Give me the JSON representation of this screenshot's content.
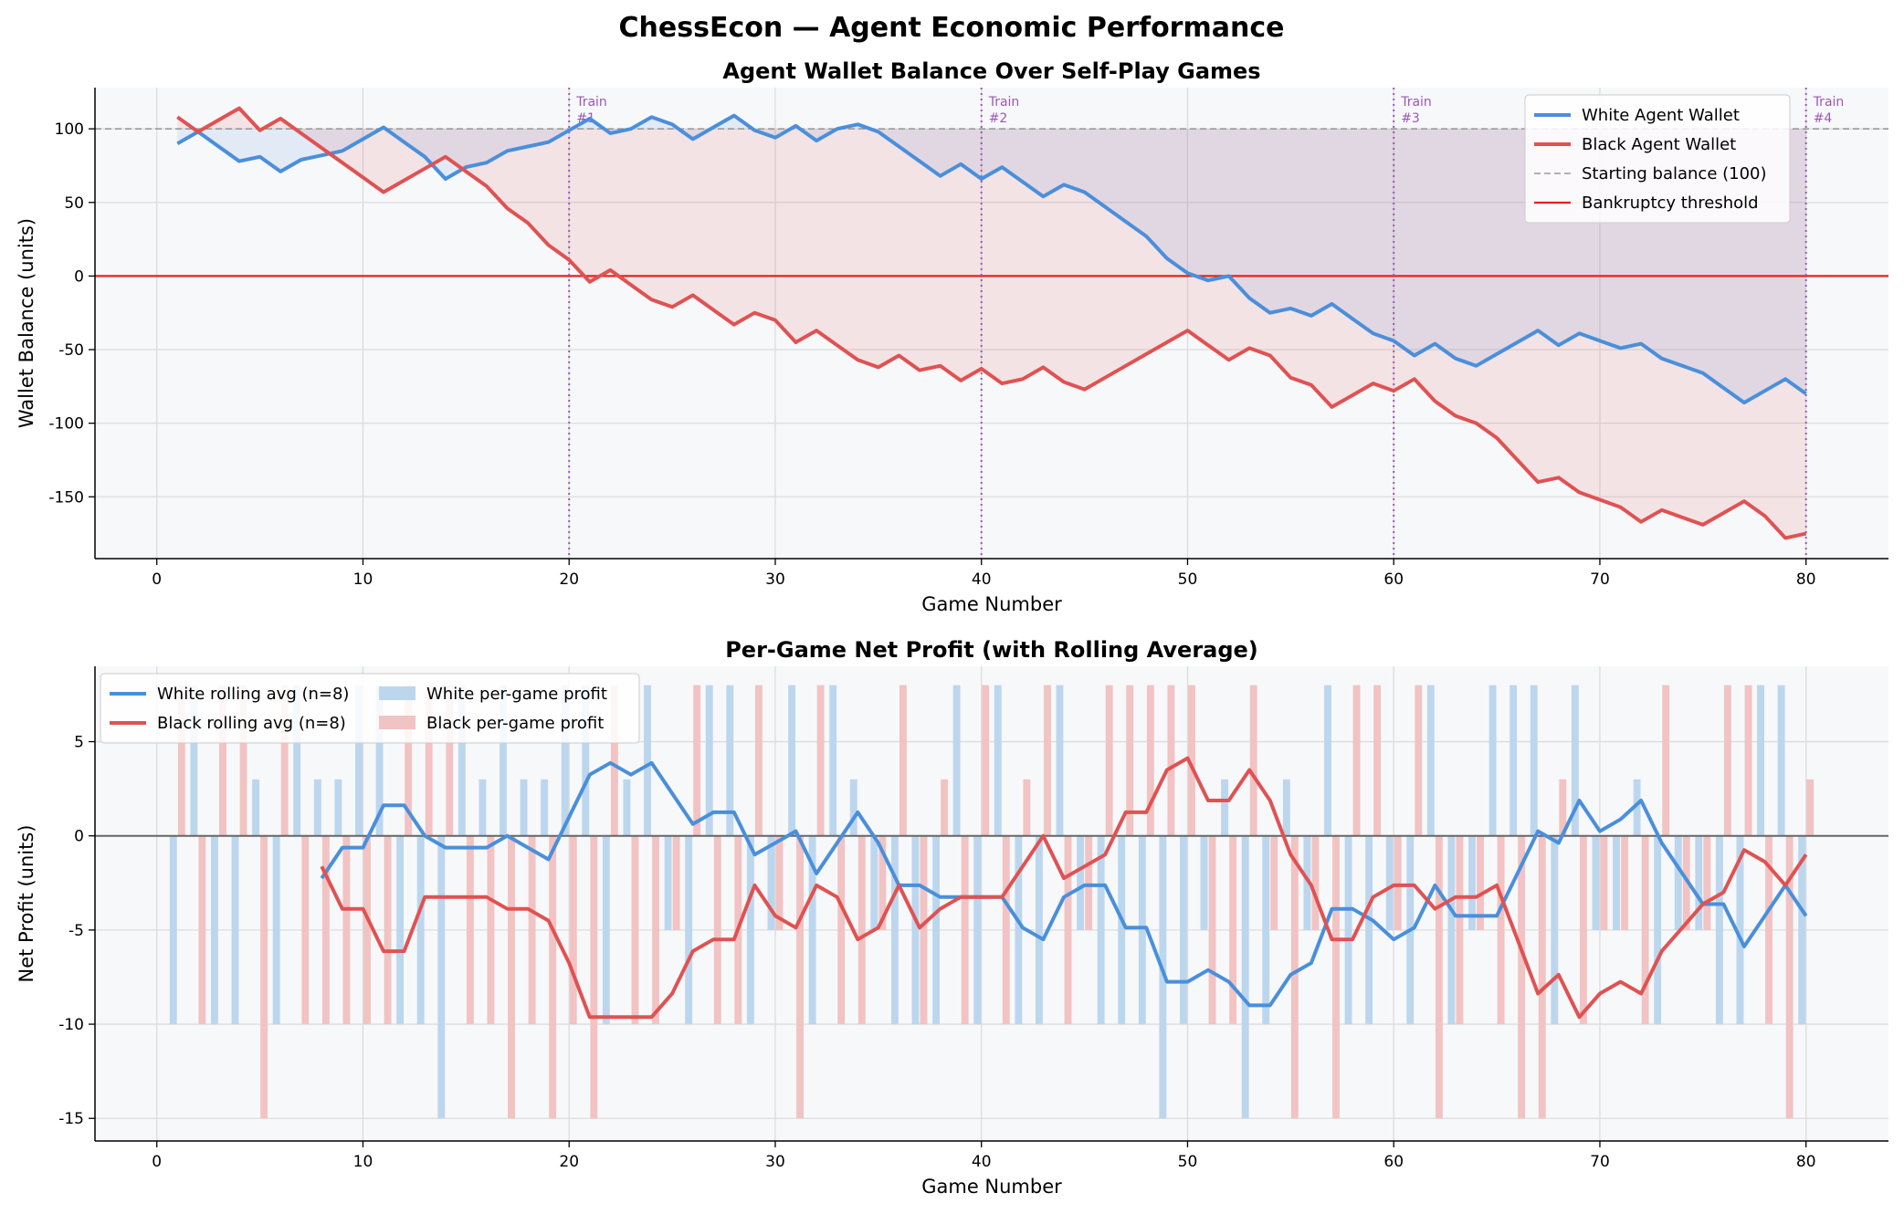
{
  "suptitle": "ChessEcon — Agent Economic Performance",
  "colors": {
    "white": "#4a8fdb",
    "black": "#e05252",
    "white_bar": "#bcd6ee",
    "black_bar": "#f1c3c3",
    "threshold": "#e82020",
    "train": "#9b59b6",
    "start": "#999999",
    "axes_bg": "#f7f8fa"
  },
  "chart_data": [
    {
      "type": "line",
      "title": "Agent Wallet Balance Over Self-Play Games",
      "xlabel": "Game Number",
      "ylabel": "Wallet Balance (units)",
      "xlim": [
        -3,
        84
      ],
      "ylim": [
        -192,
        128
      ],
      "xticks": [
        0,
        10,
        20,
        30,
        40,
        50,
        60,
        70,
        80
      ],
      "yticks": [
        -150,
        -100,
        -50,
        0,
        50,
        100
      ],
      "grid": true,
      "legend_position": "top-right",
      "x": [
        1,
        2,
        3,
        4,
        5,
        6,
        7,
        8,
        9,
        10,
        11,
        12,
        13,
        14,
        15,
        16,
        17,
        18,
        19,
        20,
        21,
        22,
        23,
        24,
        25,
        26,
        27,
        28,
        29,
        30,
        31,
        32,
        33,
        34,
        35,
        36,
        37,
        38,
        39,
        40,
        41,
        42,
        43,
        44,
        45,
        46,
        47,
        48,
        49,
        50,
        51,
        52,
        53,
        54,
        55,
        56,
        57,
        58,
        59,
        60,
        61,
        62,
        63,
        64,
        65,
        66,
        67,
        68,
        69,
        70,
        71,
        72,
        73,
        74,
        75,
        76,
        77,
        78,
        79,
        80
      ],
      "series": [
        {
          "name": "White Agent Wallet",
          "values": [
            90,
            98,
            88,
            78,
            81,
            71,
            79,
            82,
            85,
            93,
            101,
            91,
            81,
            66,
            74,
            77,
            85,
            88,
            91,
            99,
            107,
            97,
            100,
            108,
            103,
            93,
            101,
            109,
            99,
            94,
            102,
            92,
            100,
            103,
            98,
            88,
            78,
            68,
            76,
            66,
            74,
            64,
            54,
            62,
            57,
            47,
            37,
            27,
            12,
            2,
            -3,
            0,
            -15,
            -25,
            -22,
            -27,
            -19,
            -29,
            -39,
            -44,
            -54,
            -46,
            -56,
            -61,
            -53,
            -45,
            -37,
            -47,
            -39,
            -44,
            -49,
            -46,
            -56,
            -61,
            -66,
            -76,
            -86,
            -78,
            -70,
            -80
          ]
        },
        {
          "name": "Black Agent Wallet",
          "values": [
            108,
            98,
            106,
            114,
            99,
            107,
            97,
            87,
            77,
            67,
            57,
            65,
            73,
            81,
            71,
            61,
            46,
            36,
            21,
            11,
            -4,
            4,
            -6,
            -16,
            -21,
            -13,
            -23,
            -33,
            -25,
            -30,
            -45,
            -37,
            -47,
            -57,
            -62,
            -54,
            -64,
            -61,
            -71,
            -63,
            -73,
            -70,
            -62,
            -72,
            -77,
            -69,
            -61,
            -53,
            -45,
            -37,
            -47,
            -57,
            -49,
            -54,
            -69,
            -74,
            -89,
            -81,
            -73,
            -78,
            -70,
            -85,
            -95,
            -100,
            -110,
            -125,
            -140,
            -137,
            -147,
            -152,
            -157,
            -167,
            -159,
            -164,
            -169,
            -161,
            -153,
            -163,
            -178,
            -175
          ]
        }
      ],
      "reference_lines": [
        {
          "name": "Starting balance (100)",
          "value": 100
        },
        {
          "name": "Bankruptcy threshold",
          "value": 0
        }
      ],
      "annotations": [
        {
          "x": 20,
          "text_line1": "Train",
          "text_line2": "#1"
        },
        {
          "x": 40,
          "text_line1": "Train",
          "text_line2": "#2"
        },
        {
          "x": 60,
          "text_line1": "Train",
          "text_line2": "#3"
        },
        {
          "x": 80,
          "text_line1": "Train",
          "text_line2": "#4"
        }
      ]
    },
    {
      "type": "bar",
      "title": "Per-Game Net Profit (with Rolling Average)",
      "xlabel": "Game Number",
      "ylabel": "Net Profit (units)",
      "xlim": [
        -3,
        84
      ],
      "ylim": [
        -16.2,
        9
      ],
      "xticks": [
        0,
        10,
        20,
        30,
        40,
        50,
        60,
        70,
        80
      ],
      "yticks": [
        -15,
        -10,
        -5,
        0,
        5
      ],
      "grid": true,
      "legend_position": "top-left",
      "rolling_window": 8,
      "series": [
        {
          "name": "White per-game profit",
          "values": [
            -10,
            8,
            -10,
            -10,
            3,
            -10,
            8,
            3,
            3,
            8,
            8,
            -10,
            -10,
            -15,
            8,
            3,
            8,
            3,
            3,
            8,
            8,
            -10,
            3,
            8,
            -5,
            -10,
            8,
            8,
            -10,
            -5,
            8,
            -10,
            8,
            3,
            -5,
            -10,
            -10,
            -10,
            8,
            -10,
            8,
            -10,
            -10,
            8,
            -5,
            -10,
            -10,
            -10,
            -15,
            -10,
            -5,
            3,
            -15,
            -10,
            3,
            -5,
            8,
            -10,
            -10,
            -5,
            -10,
            8,
            -10,
            -5,
            8,
            8,
            8,
            -10,
            8,
            -5,
            -5,
            3,
            -10,
            -5,
            -5,
            -10,
            -10,
            8,
            8,
            -10
          ]
        },
        {
          "name": "Black per-game profit",
          "values": [
            8,
            -10,
            8,
            8,
            -15,
            8,
            -10,
            -10,
            -10,
            -10,
            -10,
            8,
            8,
            8,
            -10,
            -10,
            -15,
            -10,
            -15,
            -10,
            -15,
            8,
            -10,
            -10,
            -5,
            8,
            -10,
            -10,
            8,
            -5,
            -15,
            8,
            -10,
            -10,
            -5,
            8,
            -10,
            3,
            -10,
            8,
            -10,
            3,
            8,
            -10,
            -5,
            8,
            8,
            8,
            8,
            8,
            -10,
            -10,
            8,
            -5,
            -15,
            -5,
            -15,
            8,
            8,
            -5,
            8,
            -15,
            -10,
            -5,
            -10,
            -15,
            -15,
            3,
            -10,
            -5,
            -5,
            -10,
            8,
            -5,
            -5,
            8,
            8,
            -10,
            -15,
            3
          ]
        },
        {
          "name": "White rolling avg (n=8)"
        },
        {
          "name": "Black rolling avg (n=8)"
        }
      ]
    }
  ]
}
